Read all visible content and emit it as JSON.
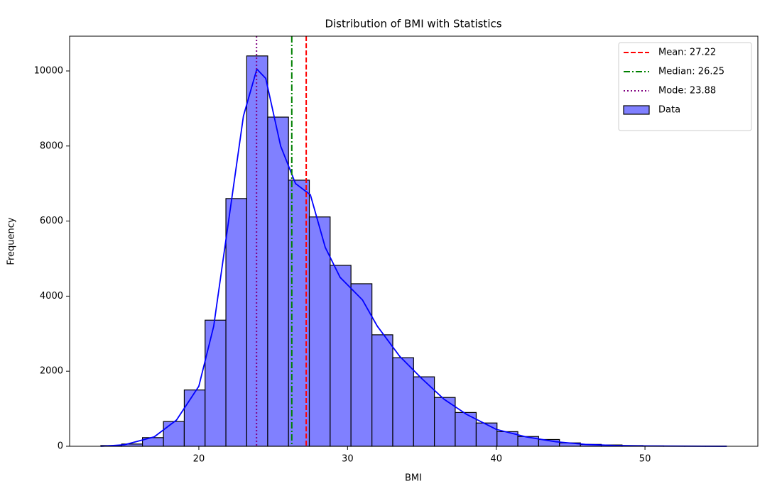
{
  "chart_data": {
    "type": "histogram",
    "title": "Distribution of BMI with Statistics",
    "xlabel": "BMI",
    "ylabel": "Frequency",
    "bins": [
      13.41,
      14.81,
      16.21,
      17.62,
      19.02,
      20.42,
      21.82,
      23.22,
      24.63,
      26.03,
      27.43,
      28.83,
      30.23,
      31.64,
      33.04,
      34.44,
      35.84,
      37.24,
      38.65,
      40.05,
      41.45,
      42.85,
      44.25,
      45.66,
      47.06,
      48.46,
      49.86,
      51.26,
      52.67,
      54.07,
      55.47
    ],
    "series": [
      {
        "name": "Data",
        "color": "#8080ff",
        "edgecolor": "#000000",
        "values": [
          20,
          60,
          230,
          660,
          1500,
          3360,
          6600,
          10400,
          8770,
          7090,
          6110,
          4820,
          4330,
          2970,
          2360,
          1850,
          1300,
          900,
          620,
          390,
          260,
          180,
          90,
          50,
          35,
          20,
          10,
          5,
          3,
          3
        ]
      }
    ],
    "kde": {
      "color": "#0000ff",
      "x": [
        13.4,
        15,
        17,
        18.5,
        20,
        21,
        22,
        23,
        23.9,
        24.5,
        25.5,
        26.5,
        27.5,
        28.5,
        29.5,
        31,
        32,
        33.5,
        35,
        36.5,
        38,
        40,
        42,
        44,
        46,
        48,
        50,
        55.5
      ],
      "values": [
        0,
        40,
        250,
        700,
        1600,
        3200,
        6000,
        8800,
        10050,
        9800,
        8000,
        7000,
        6700,
        5300,
        4500,
        3900,
        3200,
        2400,
        1800,
        1250,
        850,
        450,
        250,
        120,
        50,
        20,
        8,
        0
      ]
    },
    "lines": [
      {
        "name": "Mean: 27.22",
        "value": 27.22,
        "color": "#ff0000",
        "dash": "dashed"
      },
      {
        "name": "Median: 26.25",
        "value": 26.25,
        "color": "#008000",
        "dash": "dashdot"
      },
      {
        "name": "Mode: 23.88",
        "value": 23.88,
        "color": "#800080",
        "dash": "dotted"
      }
    ],
    "xlim": [
      11.31,
      57.59
    ],
    "ylim": [
      0,
      10926
    ],
    "xticks": [
      20,
      30,
      40,
      50
    ],
    "yticks": [
      0,
      2000,
      4000,
      6000,
      8000,
      10000
    ],
    "legend": "upper right"
  }
}
